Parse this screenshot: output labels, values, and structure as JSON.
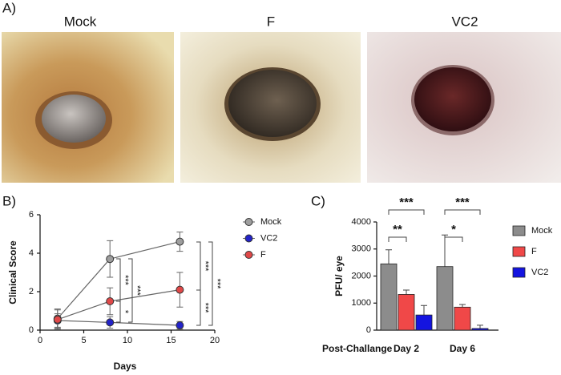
{
  "panels": {
    "a": "A)",
    "b": "B)",
    "c": "C)"
  },
  "photos": [
    {
      "label": "Mock"
    },
    {
      "label": "F"
    },
    {
      "label": "VC2"
    }
  ],
  "chart_data": [
    {
      "type": "line",
      "ylabel": "Clinical Score",
      "xlabel": "Days",
      "x": [
        2,
        8,
        16
      ],
      "xlim": [
        0,
        20
      ],
      "xticks": [
        0,
        5,
        10,
        15,
        20
      ],
      "ylim": [
        0,
        6
      ],
      "yticks": [
        0,
        2,
        4,
        6
      ],
      "series": [
        {
          "name": "Mock",
          "color": "#9e9e9e",
          "values": [
            0.6,
            3.7,
            4.6
          ],
          "errors": [
            0.5,
            0.95,
            0.5
          ]
        },
        {
          "name": "VC2",
          "color": "#2323c8",
          "values": [
            0.5,
            0.4,
            0.25
          ],
          "errors": [
            0.35,
            0.3,
            0.2
          ]
        },
        {
          "name": "F",
          "color": "#e04848",
          "values": [
            0.55,
            1.5,
            2.1
          ],
          "errors": [
            0.5,
            0.7,
            0.9
          ]
        }
      ],
      "annotations": [
        "***",
        "***",
        "*",
        "***",
        "***",
        "***"
      ]
    },
    {
      "type": "bar",
      "ylabel": "PFU/ eye",
      "xlabel": "Post-Challange",
      "categories": [
        "Day 2",
        "Day 6"
      ],
      "ylim": [
        0,
        4000
      ],
      "yticks": [
        0,
        1000,
        2000,
        3000,
        4000
      ],
      "series": [
        {
          "name": "Mock",
          "color": "#8c8c8c",
          "values": [
            2450,
            2350
          ],
          "errors": [
            520,
            1170
          ]
        },
        {
          "name": "F",
          "color": "#f04848",
          "values": [
            1320,
            850
          ],
          "errors": [
            160,
            100
          ]
        },
        {
          "name": "VC2",
          "color": "#1414e0",
          "values": [
            560,
            60
          ],
          "errors": [
            350,
            120
          ]
        }
      ],
      "annotations": [
        "***",
        "**",
        "***",
        "*"
      ]
    }
  ]
}
